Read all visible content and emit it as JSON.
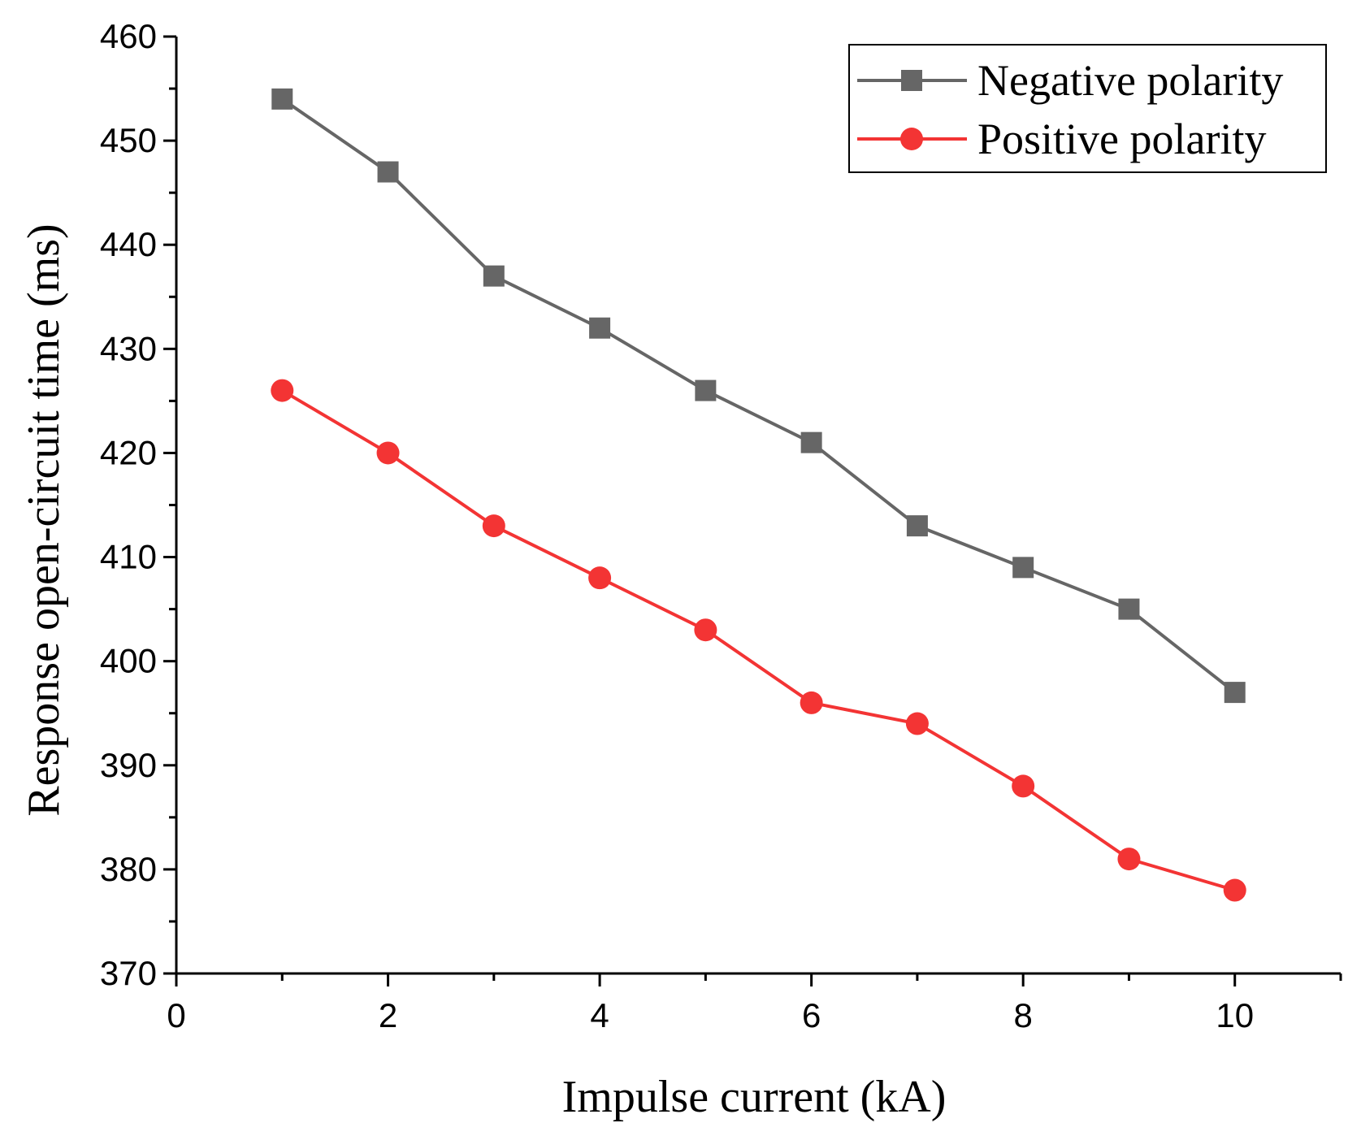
{
  "chart_data": {
    "type": "line",
    "title": "",
    "xlabel": "Impulse current (kA)",
    "ylabel": "Response open-circuit time (ms)",
    "xlim": [
      0,
      11
    ],
    "ylim": [
      370,
      460
    ],
    "xticks": [
      0,
      2,
      4,
      6,
      8,
      10
    ],
    "yticks": [
      370,
      380,
      390,
      400,
      410,
      420,
      430,
      440,
      450,
      460
    ],
    "x": [
      1,
      2,
      3,
      4,
      5,
      6,
      7,
      8,
      9,
      10
    ],
    "series": [
      {
        "name": "Negative polarity",
        "color": "#666666",
        "marker": "square",
        "values": [
          454,
          447,
          437,
          432,
          426,
          421,
          413,
          409,
          405,
          397
        ]
      },
      {
        "name": "Positive polarity",
        "color": "#f33434",
        "marker": "circle",
        "values": [
          426,
          420,
          413,
          408,
          403,
          396,
          394,
          388,
          381,
          378
        ]
      }
    ],
    "legend_position": "top-right",
    "grid": false
  }
}
